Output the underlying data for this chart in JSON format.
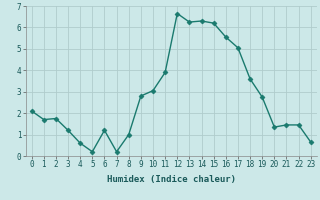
{
  "x": [
    0,
    1,
    2,
    3,
    4,
    5,
    6,
    7,
    8,
    9,
    10,
    11,
    12,
    13,
    14,
    15,
    16,
    17,
    18,
    19,
    20,
    21,
    22,
    23
  ],
  "y": [
    2.1,
    1.7,
    1.75,
    1.2,
    0.6,
    0.2,
    1.2,
    0.2,
    1.0,
    2.8,
    3.05,
    3.9,
    6.65,
    6.25,
    6.3,
    6.2,
    5.55,
    5.05,
    3.6,
    2.75,
    1.35,
    1.45,
    1.45,
    0.65
  ],
  "line_color": "#1a7a6e",
  "marker": "D",
  "marker_size": 2.5,
  "bg_color": "#cce8e8",
  "grid_color": "#b0cccc",
  "xlabel": "Humidex (Indice chaleur)",
  "xlim": [
    -0.5,
    23.5
  ],
  "ylim": [
    0,
    7
  ],
  "yticks": [
    0,
    1,
    2,
    3,
    4,
    5,
    6,
    7
  ],
  "xtick_labels": [
    "0",
    "1",
    "2",
    "3",
    "4",
    "5",
    "6",
    "7",
    "8",
    "9",
    "10",
    "11",
    "12",
    "13",
    "14",
    "15",
    "16",
    "17",
    "18",
    "19",
    "20",
    "21",
    "22",
    "23"
  ],
  "xlabel_fontsize": 6.5,
  "tick_fontsize": 5.5,
  "line_width": 1.0
}
